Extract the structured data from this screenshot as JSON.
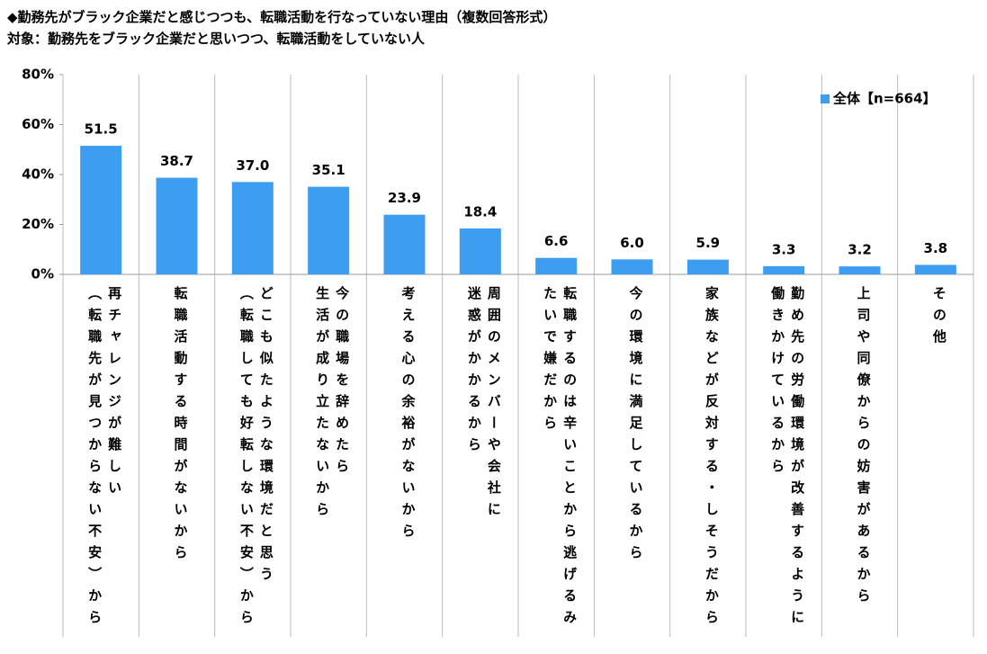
{
  "chart_data": {
    "type": "bar",
    "title": "◆勤務先がブラック企業だと感じつつも、転職活動を行なっていない理由（複数回答形式）",
    "subtitle": "対象：勤務先をブラック企業だと思いつつ、転職活動をしていない人",
    "categories": [
      "再チャレンジが難しい\n（転職先が見つからない不安）から",
      "転職活動する時間がないから",
      "どこも似たような環境だと思う\n（転職しても好転しない不安）から",
      "今の職場を辞めたら\n生活が成り立たないから",
      "考える心の余裕がないから",
      "周囲のメンバーや会社に\n迷惑がかかるから",
      "転職するのは辛いことから逃げるみ\nたいで嫌だから",
      "今の環境に満足しているから",
      "家族などが反対する・しそうだから",
      "勤め先の労働環境が改善するように\n働きかけているから",
      "上司や同僚からの妨害があるから",
      "その他"
    ],
    "series": [
      {
        "name": "全体【n=664】",
        "color": "#3d9df0",
        "values": [
          51.5,
          38.7,
          37.0,
          35.1,
          23.9,
          18.4,
          6.6,
          6.0,
          5.9,
          3.3,
          3.2,
          3.8
        ],
        "value_labels": [
          "51.5",
          "38.7",
          "37.0",
          "35.1",
          "23.9",
          "18.4",
          "6.6",
          "6.0",
          "5.9",
          "3.3",
          "3.2",
          "3.8"
        ]
      }
    ],
    "ylim": [
      0,
      80
    ],
    "yticks": [
      {
        "value": 0,
        "label": "0%"
      },
      {
        "value": 20,
        "label": "20%"
      },
      {
        "value": 40,
        "label": "40%"
      },
      {
        "value": 60,
        "label": "60%"
      },
      {
        "value": 80,
        "label": "80%"
      }
    ],
    "legend": "top-right"
  }
}
